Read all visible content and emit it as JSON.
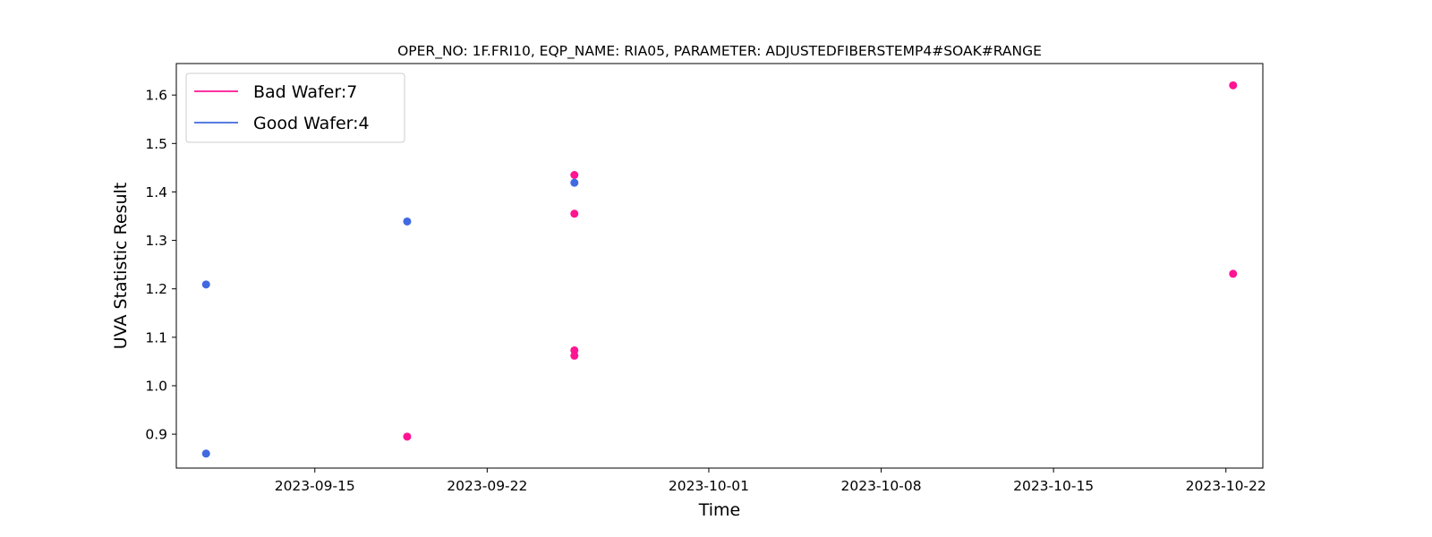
{
  "chart_data": {
    "type": "scatter",
    "title": "OPER_NO: 1F.FRI10,  EQP_NAME: RIA05,  PARAMETER: ADJUSTEDFIBERSTEMP4#SOAK#RANGE",
    "xlabel": "Time",
    "ylabel": "UVA Statistic Result",
    "x_axis_kind": "date",
    "xlim": [
      "2023-09-09T09:00",
      "2023-10-23T12:00"
    ],
    "ylim": [
      0.83,
      1.665
    ],
    "x_ticks": [
      "2023-09-15",
      "2023-09-22",
      "2023-10-01",
      "2023-10-08",
      "2023-10-15",
      "2023-10-22"
    ],
    "y_ticks": [
      0.9,
      1.0,
      1.1,
      1.2,
      1.3,
      1.4,
      1.5,
      1.6
    ],
    "grid": false,
    "legend_position": "upper-left",
    "series": [
      {
        "name": "Bad Wafer:7",
        "color": "#ff1493",
        "points": [
          {
            "x": "2023-09-18T18:00",
            "y": 0.895
          },
          {
            "x": "2023-09-25T13:00",
            "y": 1.435
          },
          {
            "x": "2023-09-25T13:00",
            "y": 1.355
          },
          {
            "x": "2023-09-25T13:00",
            "y": 1.073
          },
          {
            "x": "2023-09-25T13:00",
            "y": 1.062
          },
          {
            "x": "2023-10-22T07:00",
            "y": 1.62
          },
          {
            "x": "2023-10-22T07:00",
            "y": 1.231
          }
        ]
      },
      {
        "name": "Good Wafer:4",
        "color": "#4169e1",
        "points": [
          {
            "x": "2023-09-10T14:00",
            "y": 1.209
          },
          {
            "x": "2023-09-10T14:00",
            "y": 0.86
          },
          {
            "x": "2023-09-18T18:00",
            "y": 1.339
          },
          {
            "x": "2023-09-25T13:00",
            "y": 1.419
          }
        ]
      }
    ]
  }
}
